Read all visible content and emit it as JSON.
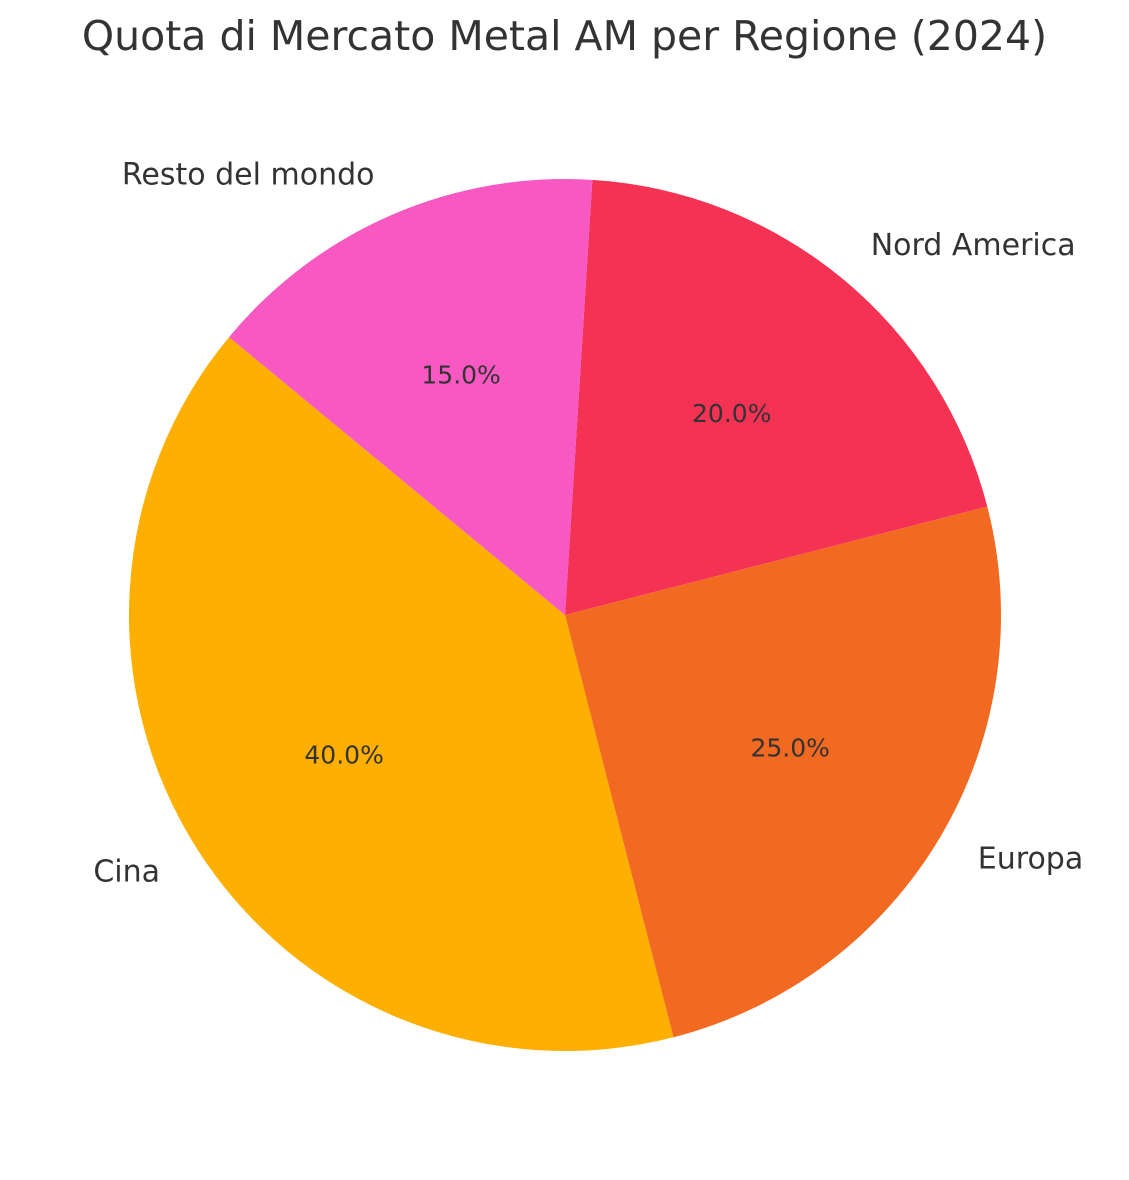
{
  "chart_data": {
    "type": "pie",
    "title": "Quota di Mercato Metal AM per Regione (2024)",
    "slices": [
      {
        "label": "Nord America",
        "value": 20.0,
        "pct_text": "20.0%",
        "color": "#F43254"
      },
      {
        "label": "Europa",
        "value": 25.0,
        "pct_text": "25.0%",
        "color": "#F26922"
      },
      {
        "label": "Cina",
        "value": 40.0,
        "pct_text": "40.0%",
        "color": "#FFAF00"
      },
      {
        "label": "Resto del mondo",
        "value": 15.0,
        "pct_text": "15.0%",
        "color": "#F858C1"
      }
    ],
    "start_angle_deg": 86.4,
    "direction": "clockwise",
    "legend": "none"
  }
}
